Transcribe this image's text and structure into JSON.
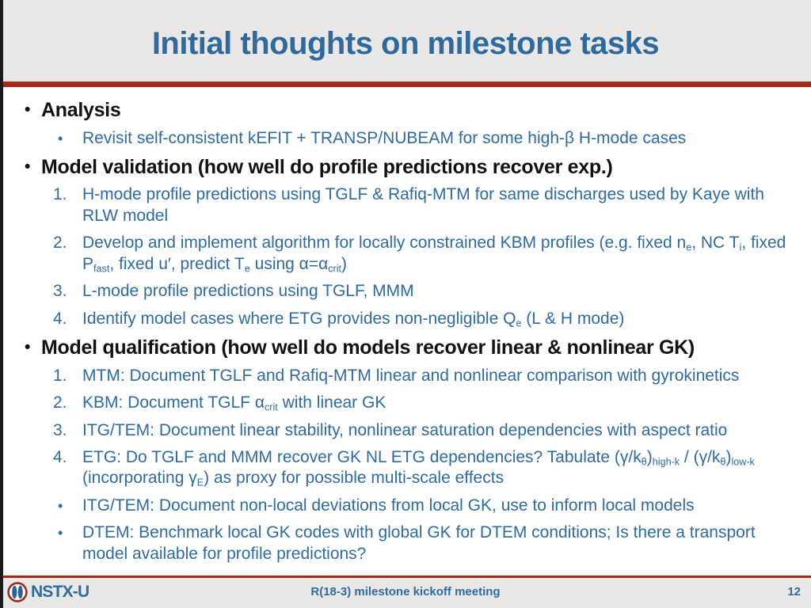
{
  "slide": {
    "title": "Initial thoughts on milestone tasks"
  },
  "footer": {
    "logo_text": "NSTX-U",
    "center_text": "R(18-3) milestone kickoff meeting",
    "page_number": "12"
  },
  "colors": {
    "title_blue": "#2f6a9f",
    "body_blue": "#2e6ba3",
    "rule_red": "#a62a1c",
    "bar_gray": "#e9e8e6",
    "heading_black": "#121212",
    "logo_ring_red": "#9e2b1e",
    "logo_lobe_blue": "#2a6496"
  },
  "content": {
    "items": [
      {
        "type": "h1",
        "marker": "•",
        "text": "Analysis"
      },
      {
        "type": "blt",
        "marker": "•",
        "text": "Revisit self-consistent kEFIT + TRANSP/NUBEAM for some high-β H-mode cases"
      },
      {
        "type": "h1",
        "marker": "•",
        "text": "Model validation (how well do profile predictions recover exp.)"
      },
      {
        "type": "num",
        "marker": "1.",
        "text": "H-mode profile predictions using TGLF & Rafiq-MTM for same discharges used by Kaye with RLW model"
      },
      {
        "type": "num",
        "marker": "2.",
        "text": "Develop and implement algorithm for locally constrained KBM profiles (e.g. fixed n~e~, NC T~i~, fixed P~fast~, fixed u′, predict T~e~ using α=α~crit~)"
      },
      {
        "type": "num",
        "marker": "3.",
        "text": "L-mode profile predictions using TGLF, MMM"
      },
      {
        "type": "num",
        "marker": "4.",
        "text": "Identify model cases where ETG provides non-negligible Q~e~ (L & H mode)"
      },
      {
        "type": "h1",
        "marker": "•",
        "text": "Model qualification (how well do models recover linear & nonlinear GK)"
      },
      {
        "type": "num",
        "marker": "1.",
        "text": "MTM: Document TGLF and Rafiq-MTM linear and nonlinear comparison with gyrokinetics"
      },
      {
        "type": "num",
        "marker": "2.",
        "text": "KBM: Document TGLF α~crit~ with linear GK"
      },
      {
        "type": "num",
        "marker": "3.",
        "text": "ITG/TEM: Document linear stability, nonlinear saturation dependencies with aspect ratio"
      },
      {
        "type": "num",
        "marker": "4.",
        "text": "ETG: Do TGLF and MMM recover GK NL ETG dependencies? Tabulate (γ/k~θ~)~high-k~ / (γ/k~θ~)~low-k~ (incorporating γ~E~) as proxy for possible multi-scale effects"
      },
      {
        "type": "blt",
        "marker": "•",
        "text": "ITG/TEM: Document non-local deviations from local GK, use to inform local models"
      },
      {
        "type": "blt",
        "marker": "•",
        "text": "DTEM: Benchmark local GK codes with global GK for DTEM conditions; Is there a transport model available for profile predictions?"
      }
    ]
  }
}
